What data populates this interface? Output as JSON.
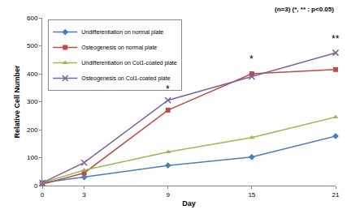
{
  "chart_data": {
    "type": "line",
    "x_label": "Day",
    "y_label": "Relative Cell Number",
    "x": [
      0,
      3,
      9,
      15,
      21
    ],
    "series": [
      {
        "name": "Undifferentiation on normal plate",
        "color": "#4a7ebb",
        "marker": "diamond",
        "values": [
          10,
          30,
          72,
          102,
          177
        ]
      },
      {
        "name": "Osteogenesis on normal plate",
        "color": "#be4b48",
        "marker": "square",
        "values": [
          5,
          45,
          270,
          400,
          415
        ]
      },
      {
        "name": "Undifferentiation on Col1-coated plate",
        "color": "#98b954",
        "marker": "triangle",
        "values": [
          10,
          55,
          120,
          172,
          245
        ]
      },
      {
        "name": "Osteogenesis on Col1-coated plate",
        "color": "#7d60a0",
        "marker": "x",
        "values": [
          10,
          82,
          305,
          390,
          475
        ]
      }
    ],
    "xlim": [
      0,
      21
    ],
    "xticks": [
      0,
      3,
      9,
      15,
      21
    ],
    "ylim": [
      0,
      600
    ],
    "yticks": [
      0,
      100,
      200,
      300,
      400,
      500,
      600
    ],
    "grid": false,
    "legend": "upper left",
    "annotations": [
      {
        "text": "(n=3) (*, ** : p<0.05)"
      },
      {
        "text": "*",
        "x": 9,
        "y": 318
      },
      {
        "text": "*",
        "x": 15,
        "y": 425
      },
      {
        "text": "**",
        "x": 21,
        "y": 500
      }
    ]
  }
}
